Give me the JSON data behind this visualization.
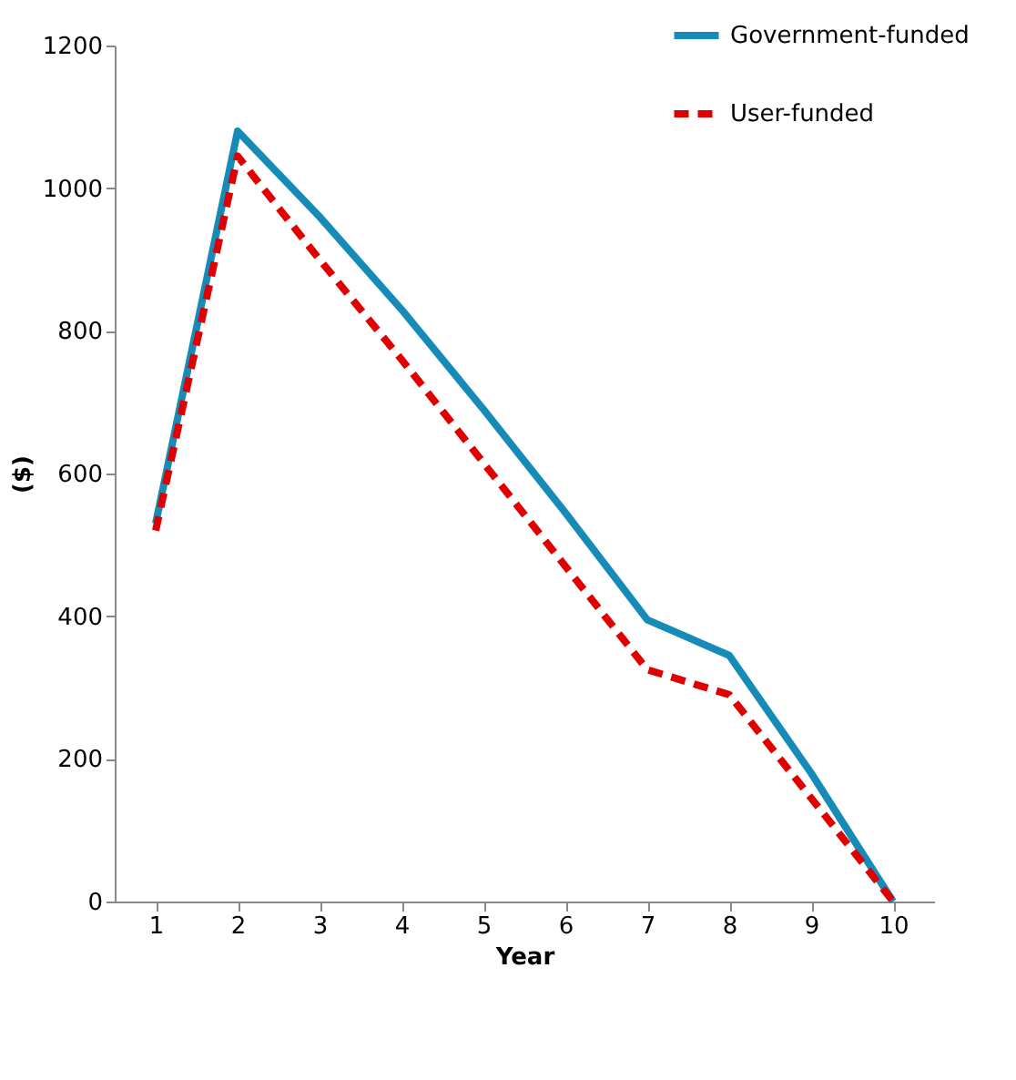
{
  "chart_data": {
    "type": "line",
    "xlabel": "Year",
    "ylabel": "($)",
    "categories": [
      "1",
      "2",
      "3",
      "4",
      "5",
      "6",
      "7",
      "8",
      "9",
      "10"
    ],
    "series": [
      {
        "name": "Government-funded",
        "color": "#168bb8",
        "line_style": "solid",
        "values": [
          530,
          1080,
          960,
          830,
          690,
          545,
          395,
          345,
          180,
          0
        ]
      },
      {
        "name": "User-funded",
        "color": "#e00000",
        "line_style": "dashed",
        "values": [
          520,
          1045,
          900,
          760,
          615,
          470,
          325,
          290,
          145,
          0
        ]
      }
    ],
    "ylim": [
      0,
      1200
    ],
    "yticks": [
      0,
      200,
      400,
      600,
      800,
      1000,
      1200
    ],
    "grid": false,
    "legend": "top right",
    "marker": "none"
  }
}
